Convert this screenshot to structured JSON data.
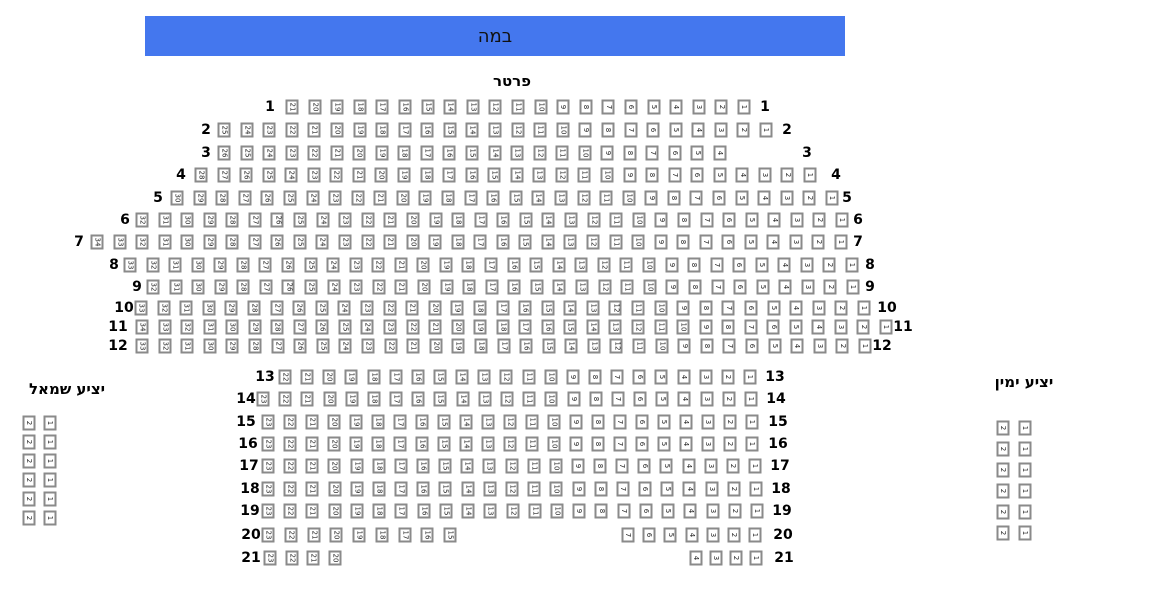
{
  "stage": {
    "label": "במה",
    "color": "#4477ee"
  },
  "sections": {
    "parterre": "פרטר",
    "left_balcony": "יציע שמאל",
    "right_balcony": "יציע ימין"
  },
  "rows": [
    {
      "label": "1",
      "seats": [
        [
          21,
          1
        ]
      ]
    },
    {
      "label": "2",
      "seats": [
        [
          25,
          1
        ]
      ]
    },
    {
      "label": "3",
      "seats": [
        [
          26,
          4
        ]
      ]
    },
    {
      "label": "4",
      "seats": [
        [
          28,
          1
        ]
      ]
    },
    {
      "label": "5",
      "seats": [
        [
          30,
          1
        ]
      ]
    },
    {
      "label": "6",
      "seats": [
        [
          32,
          1
        ]
      ]
    },
    {
      "label": "7",
      "seats": [
        [
          34,
          1
        ]
      ]
    },
    {
      "label": "8",
      "seats": [
        [
          33,
          1
        ]
      ]
    },
    {
      "label": "9",
      "seats": [
        [
          32,
          1
        ]
      ]
    },
    {
      "label": "10",
      "seats": [
        [
          33,
          1
        ]
      ]
    },
    {
      "label": "11",
      "seats": [
        [
          34,
          1
        ]
      ]
    },
    {
      "label": "12",
      "seats": [
        [
          33,
          1
        ]
      ]
    },
    {
      "label": "13",
      "seats": [
        [
          22,
          1
        ]
      ]
    },
    {
      "label": "14",
      "seats": [
        [
          23,
          1
        ]
      ]
    },
    {
      "label": "15",
      "seats": [
        [
          23,
          1
        ]
      ]
    },
    {
      "label": "16",
      "seats": [
        [
          23,
          1
        ]
      ]
    },
    {
      "label": "17",
      "seats": [
        [
          23,
          1
        ]
      ]
    },
    {
      "label": "18",
      "seats": [
        [
          23,
          1
        ]
      ]
    },
    {
      "label": "19",
      "seats": [
        [
          23,
          1
        ]
      ]
    },
    {
      "label": "20",
      "seats": [
        [
          23,
          15
        ],
        [
          7,
          1
        ]
      ]
    },
    {
      "label": "21",
      "seats": [
        [
          23,
          20
        ],
        [
          4,
          1
        ]
      ]
    }
  ],
  "left_balcony_rows": [
    [
      "2",
      "1"
    ],
    [
      "2",
      "1"
    ],
    [
      "2",
      "1"
    ],
    [
      "2",
      "1"
    ],
    [
      "2",
      "1"
    ],
    [
      "2",
      "1"
    ]
  ],
  "right_balcony_rows": [
    [
      "2",
      "1"
    ],
    [
      "2",
      "1"
    ],
    [
      "2",
      "1"
    ],
    [
      "2",
      "1"
    ],
    [
      "2",
      "1"
    ],
    [
      "2",
      "1"
    ]
  ]
}
